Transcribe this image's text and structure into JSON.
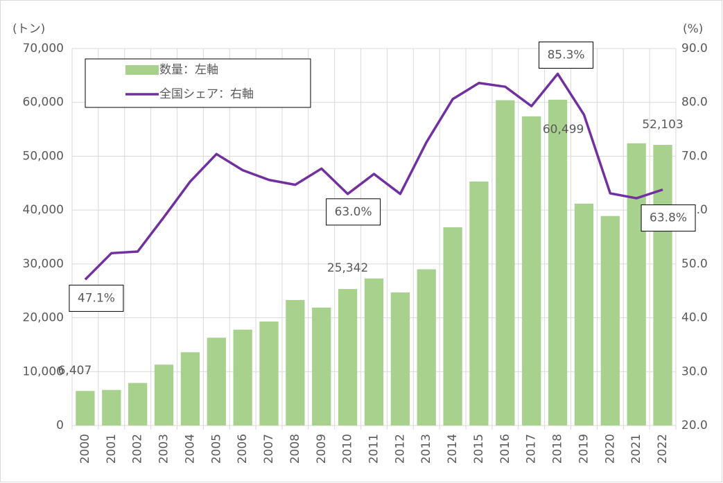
{
  "chart_data": {
    "type": "bar-line",
    "y_label": "(トン)",
    "y2_label": "(%)",
    "categories": [
      "2000",
      "2001",
      "2002",
      "2003",
      "2004",
      "2005",
      "2006",
      "2007",
      "2008",
      "2009",
      "2010",
      "2011",
      "2012",
      "2013",
      "2014",
      "2015",
      "2016",
      "2017",
      "2018",
      "2019",
      "2020",
      "2021",
      "2022"
    ],
    "series": [
      {
        "name": "数量：左軸",
        "type": "bar",
        "color": "#a9d18e",
        "values": [
          6407,
          6600,
          7900,
          11300,
          13600,
          16300,
          17800,
          19300,
          23300,
          21900,
          25342,
          27300,
          24700,
          29000,
          36800,
          45300,
          60400,
          57400,
          60499,
          41200,
          38900,
          52400,
          52103
        ],
        "value_labels": [
          "6,407",
          null,
          null,
          null,
          null,
          null,
          null,
          null,
          null,
          null,
          "25,342",
          null,
          null,
          null,
          null,
          null,
          null,
          null,
          "60,499",
          null,
          null,
          null,
          "52,103"
        ]
      },
      {
        "name": "全国シェア：右軸",
        "type": "line",
        "axis": "y2",
        "color": "#7030a0",
        "values": [
          47.1,
          52.0,
          52.3,
          58.7,
          65.3,
          70.4,
          67.4,
          65.6,
          64.7,
          67.7,
          63.0,
          66.7,
          63.0,
          72.6,
          80.6,
          83.6,
          82.9,
          79.3,
          85.3,
          77.7,
          63.1,
          62.2,
          63.8
        ],
        "value_labels": [
          "47.1%",
          null,
          null,
          null,
          null,
          null,
          null,
          null,
          null,
          null,
          "63.0%",
          null,
          null,
          null,
          null,
          null,
          null,
          null,
          "85.3%",
          null,
          null,
          null,
          "63.8%"
        ]
      }
    ],
    "ylim": [
      0,
      70000
    ],
    "yticks": [
      0,
      {
        "value": 10000,
        "label": "10,000"
      },
      {
        "value": 20000,
        "label": "20,000"
      },
      {
        "value": 30000,
        "label": "30,000"
      },
      {
        "value": 40000,
        "label": "40,000"
      },
      {
        "value": 50000,
        "label": "50,000"
      },
      {
        "value": 60000,
        "label": "60,000"
      },
      {
        "value": 70000,
        "label": "70,000"
      }
    ],
    "y2lim": [
      20,
      90
    ],
    "y2ticks": [
      {
        "value": 20,
        "label": "20.0"
      },
      {
        "value": 30,
        "label": "30.0"
      },
      {
        "value": 40,
        "label": "40.0"
      },
      {
        "value": 50,
        "label": "50.0"
      },
      {
        "value": 60,
        "label": "60.0"
      },
      {
        "value": 70,
        "label": "70.0"
      },
      {
        "value": 80,
        "label": "80.0"
      },
      {
        "value": 90,
        "label": "90.0"
      }
    ],
    "grid": true
  }
}
